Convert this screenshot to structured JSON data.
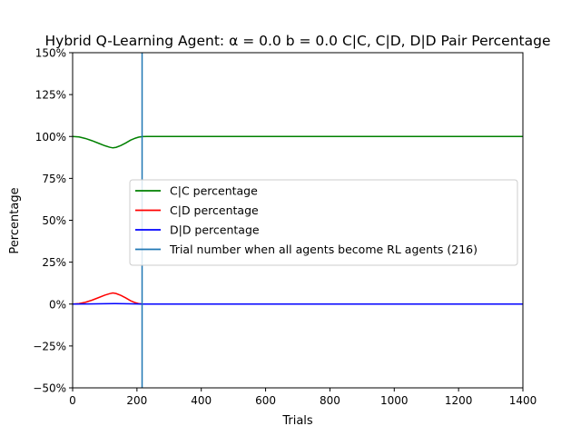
{
  "chart_data": {
    "type": "line",
    "title": "Hybrid Q-Learning Agent: α = 0.0 b = 0.0  C|C, C|D, D|D Pair Percentage",
    "xlabel": "Trials",
    "ylabel": "Percentage",
    "xlim": [
      0,
      1400
    ],
    "ylim": [
      -50,
      150
    ],
    "x_ticks": [
      0,
      200,
      400,
      600,
      800,
      1000,
      1200,
      1400
    ],
    "x_tick_labels": [
      "0",
      "200",
      "400",
      "600",
      "800",
      "1000",
      "1200",
      "1400"
    ],
    "y_ticks": [
      -50,
      -25,
      0,
      25,
      50,
      75,
      100,
      125,
      150
    ],
    "y_tick_labels": [
      "−50%",
      "−25%",
      "0%",
      "25%",
      "50%",
      "75%",
      "100%",
      "125%",
      "150%"
    ],
    "grid": false,
    "legend_placement": "center-right",
    "series": [
      {
        "name": "C|C percentage",
        "color": "#008000",
        "x": [
          0,
          20,
          40,
          60,
          80,
          100,
          115,
          125,
          135,
          150,
          165,
          180,
          195,
          205,
          216,
          230,
          260,
          300,
          400,
          600,
          800,
          1000,
          1200,
          1400
        ],
        "y": [
          100,
          99.7,
          98.8,
          97.5,
          96,
          94.5,
          93.6,
          93.2,
          93.5,
          94.6,
          96.1,
          97.8,
          99,
          99.6,
          99.9,
          100,
          100,
          100,
          100,
          100,
          100,
          100,
          100,
          100
        ]
      },
      {
        "name": "C|D percentage",
        "color": "#ff0000",
        "x": [
          0,
          20,
          40,
          60,
          80,
          100,
          115,
          125,
          135,
          150,
          165,
          180,
          195,
          205,
          216,
          230,
          260,
          300,
          400,
          600,
          800,
          1000,
          1200,
          1400
        ],
        "y": [
          0,
          0.3,
          1.1,
          2.3,
          3.8,
          5.3,
          6.2,
          6.6,
          6.3,
          5.2,
          3.7,
          2,
          0.8,
          0.3,
          0.1,
          0,
          0,
          0,
          0,
          0,
          0,
          0,
          0,
          0
        ]
      },
      {
        "name": "D|D percentage",
        "color": "#0000ff",
        "x": [
          0,
          50,
          100,
          130,
          160,
          200,
          216,
          300,
          400,
          600,
          800,
          1000,
          1200,
          1400
        ],
        "y": [
          0,
          0.1,
          0.2,
          0.3,
          0.2,
          0.1,
          0,
          0,
          0,
          0,
          0,
          0,
          0,
          0
        ]
      }
    ],
    "vline": {
      "name": "Trial number when all agents become RL agents (216)",
      "x": 216,
      "color": "#1f77b4"
    }
  }
}
